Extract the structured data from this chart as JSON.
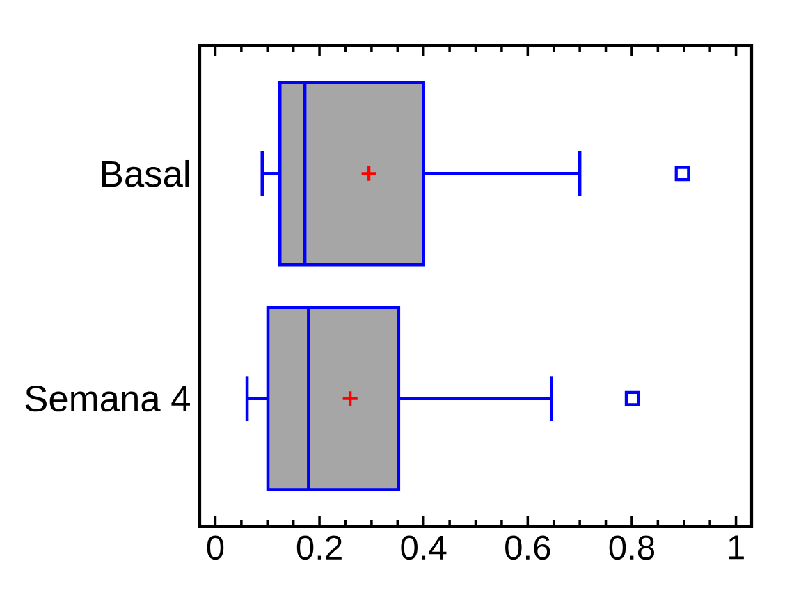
{
  "chart_data": {
    "type": "box",
    "orientation": "horizontal",
    "categories": [
      "Basal",
      "Semana 4"
    ],
    "series": [
      {
        "color": "#0000ff",
        "boxes": [
          {
            "low": 0.09,
            "q1": 0.124,
            "median": 0.172,
            "q3": 0.4,
            "high": 0.7,
            "mean": 0.295,
            "outliers": [
              0.897
            ]
          },
          {
            "low": 0.061,
            "q1": 0.101,
            "median": 0.179,
            "q3": 0.352,
            "high": 0.646,
            "mean": 0.259,
            "outliers": [
              0.801
            ]
          }
        ]
      }
    ],
    "xlim": [
      -0.03,
      1.03
    ],
    "xticks": [
      0,
      0.2,
      0.4,
      0.6,
      0.8,
      1
    ],
    "grid": false
  }
}
